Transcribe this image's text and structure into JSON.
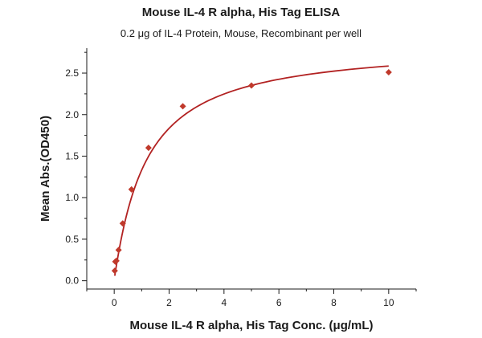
{
  "chart_data": {
    "type": "scatter",
    "title": "Mouse IL-4 R alpha, His Tag ELISA",
    "subtitle": "0.2 μg of IL-4 Protein, Mouse, Recombinant per well",
    "xlabel": "Mouse IL-4 R alpha, His Tag Conc. (μg/mL)",
    "ylabel": "Mean Abs.(OD450)",
    "xlim": [
      -1,
      11
    ],
    "ylim": [
      -0.1,
      2.8
    ],
    "xticks": [
      0,
      2,
      4,
      6,
      8,
      10
    ],
    "yticks": [
      0.0,
      0.5,
      1.0,
      1.5,
      2.0,
      2.5
    ],
    "xtick_labels": [
      "0",
      "2",
      "4",
      "6",
      "8",
      "10"
    ],
    "ytick_labels": [
      "0.0",
      "0.5",
      "1.0",
      "1.5",
      "2.0",
      "2.5"
    ],
    "grid": false,
    "marker_color": "#c0392b",
    "curve_color": "#b22222",
    "series": [
      {
        "x": [
          0.02,
          0.04,
          0.08,
          0.16,
          0.31,
          0.63,
          1.25,
          2.5,
          5,
          10
        ],
        "y": [
          0.12,
          0.23,
          0.24,
          0.37,
          0.69,
          1.1,
          1.6,
          2.1,
          2.35,
          2.51
        ]
      }
    ],
    "fit_curve": true
  }
}
